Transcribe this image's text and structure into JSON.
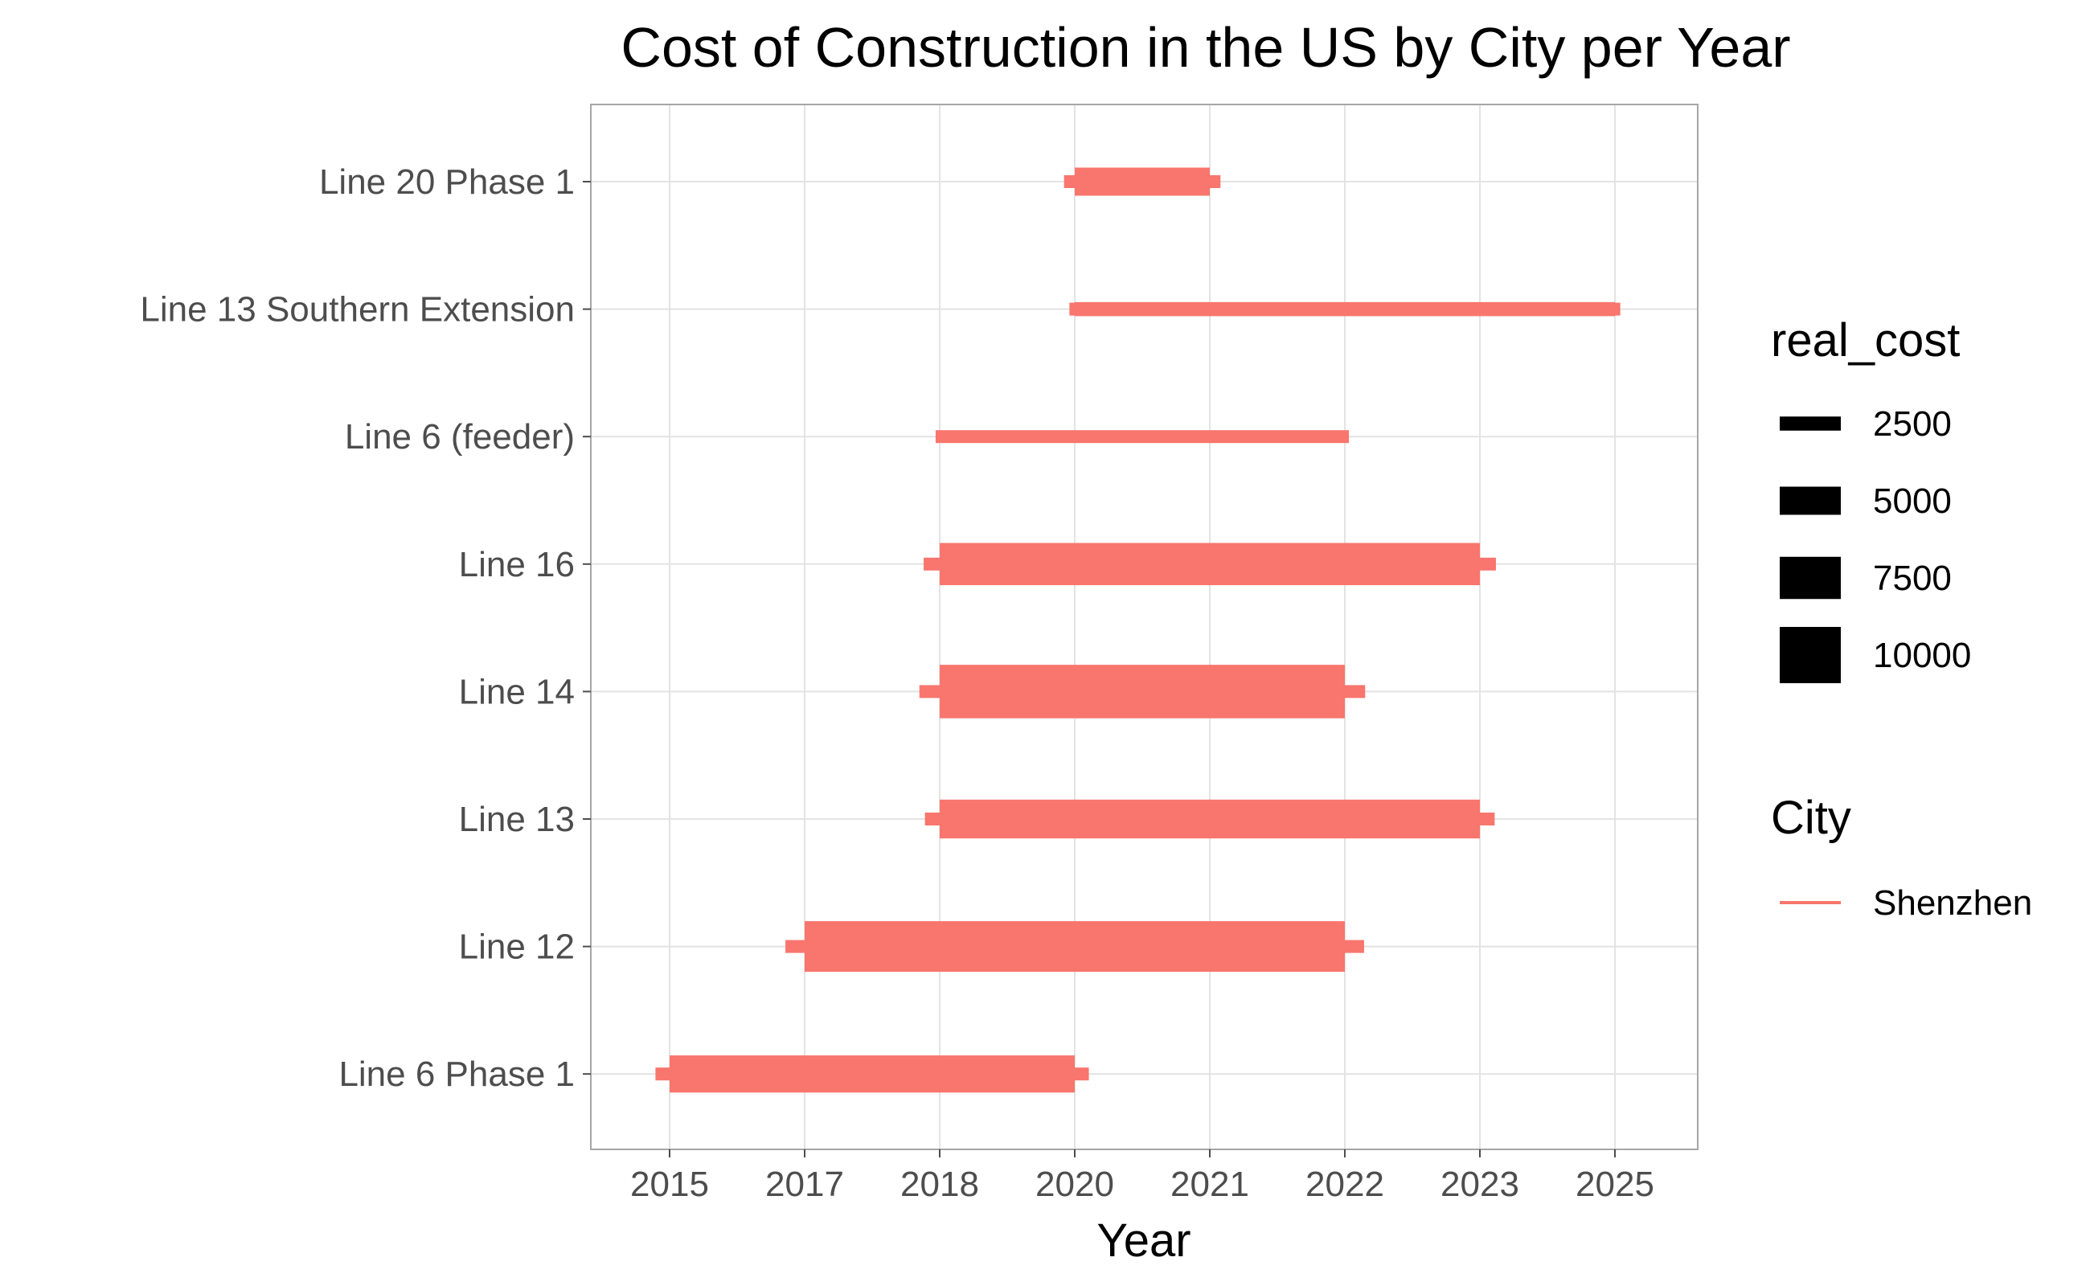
{
  "chart_data": {
    "type": "bar",
    "title": "Cost of Construction in the US by City per Year",
    "xlabel": "Year",
    "ylabel": "",
    "x_ticks": [
      "2015",
      "2017",
      "2018",
      "2020",
      "2021",
      "2022",
      "2023",
      "2025"
    ],
    "grid": true,
    "legend_position": "right",
    "series_color": "#F8766D",
    "categories": [
      "Line 20 Phase 1",
      "Line 13 Southern Extension",
      "Line 6 (feeder)",
      "Line 16",
      "Line 14",
      "Line 13",
      "Line 12",
      "Line 6 Phase 1"
    ],
    "series": [
      {
        "name": "Shenzhen",
        "values": [
          {
            "line": "Line 20 Phase 1",
            "start": "2020",
            "end": "2021",
            "real_cost": 5000
          },
          {
            "line": "Line 13 Southern Extension",
            "start": "2020",
            "end": "2025",
            "real_cost": 2500
          },
          {
            "line": "Line 6 (feeder)",
            "start": "2018",
            "end": "2022",
            "real_cost": 1900
          },
          {
            "line": "Line 16",
            "start": "2018",
            "end": "2023",
            "real_cost": 7500
          },
          {
            "line": "Line 14",
            "start": "2018",
            "end": "2022",
            "real_cost": 9500
          },
          {
            "line": "Line 13",
            "start": "2018",
            "end": "2023",
            "real_cost": 6900
          },
          {
            "line": "Line 12",
            "start": "2017",
            "end": "2022",
            "real_cost": 9000
          },
          {
            "line": "Line 6 Phase 1",
            "start": "2015",
            "end": "2020",
            "real_cost": 6600
          }
        ]
      }
    ],
    "legend_size": {
      "title": "real_cost",
      "entries": [
        2500,
        5000,
        7500,
        10000
      ],
      "key_color": "#000000"
    },
    "legend_color": {
      "title": "City",
      "entries": [
        "Shenzhen"
      ]
    }
  }
}
